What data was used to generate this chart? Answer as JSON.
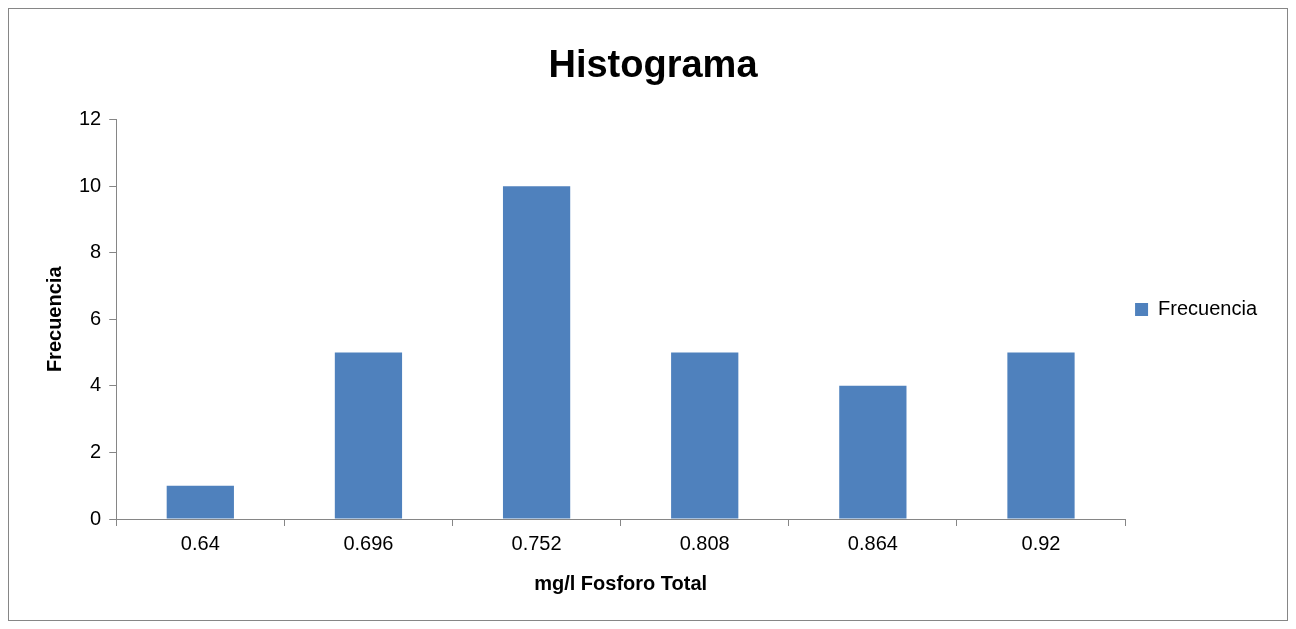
{
  "chart_data": {
    "type": "bar",
    "title": "Histograma",
    "xlabel": "mg/l Fosforo Total",
    "ylabel": "Frecuencia",
    "categories": [
      "0.64",
      "0.696",
      "0.752",
      "0.808",
      "0.864",
      "0.92"
    ],
    "series": [
      {
        "name": "Frecuencia",
        "color": "#4f81bd",
        "values": [
          1,
          5,
          10,
          5,
          4,
          5
        ]
      }
    ],
    "ylim": [
      0,
      12
    ],
    "yticks": [
      0,
      2,
      4,
      6,
      8,
      10,
      12
    ],
    "grid": false,
    "legend": "right"
  }
}
